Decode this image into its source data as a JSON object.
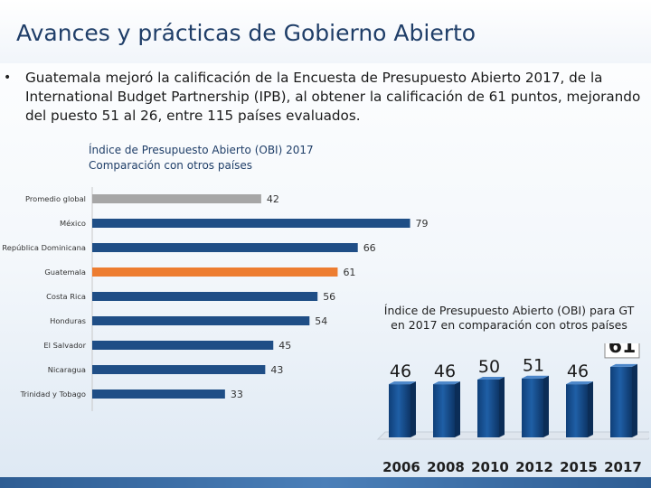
{
  "slide": {
    "title": "Avances y prácticas de Gobierno Abierto",
    "bullet_symbol": "•",
    "intro": "Guatemala mejoró la calificación de la Encuesta de Presupuesto Abierto 2017, de la International Budget Partnership (IPB), al obtener la calificación de 61 puntos, mejorando del puesto 51 al 26, entre 115 países evaluados."
  },
  "colors": {
    "title": "#1f3e68",
    "bar_default": "#1f4e86",
    "bar_global": "#a6a6a6",
    "bar_highlight": "#ed7d31",
    "column": "#1f5fa6"
  },
  "chart_data": [
    {
      "type": "bar",
      "orientation": "horizontal",
      "title_lines": [
        "Índice de Presupuesto Abierto (OBI) 2017",
        "Comparación con otros países"
      ],
      "categories": [
        "Promedio global",
        "México",
        "República Dominicana",
        "Guatemala",
        "Costa Rica",
        "Honduras",
        "El Salvador",
        "Nicaragua",
        "Trinidad y Tobago"
      ],
      "values": [
        42,
        79,
        66,
        61,
        56,
        54,
        45,
        43,
        33
      ],
      "highlight": [
        "none",
        "none",
        "none",
        "highlight",
        "none",
        "none",
        "none",
        "none",
        "none"
      ],
      "xlim": [
        0,
        100
      ],
      "grid": false,
      "legend": "none"
    },
    {
      "type": "bar",
      "orientation": "vertical",
      "style": "3d-columns",
      "title": "Índice de Presupuesto Abierto (OBI) para GT en 2017 en comparación con otros países",
      "categories": [
        "2006",
        "2008",
        "2010",
        "2012",
        "2015",
        "2017"
      ],
      "values": [
        46,
        46,
        50,
        51,
        46,
        61
      ],
      "boxed_label": "2017",
      "ylim": [
        0,
        70
      ],
      "grid": false,
      "legend": "none"
    }
  ]
}
